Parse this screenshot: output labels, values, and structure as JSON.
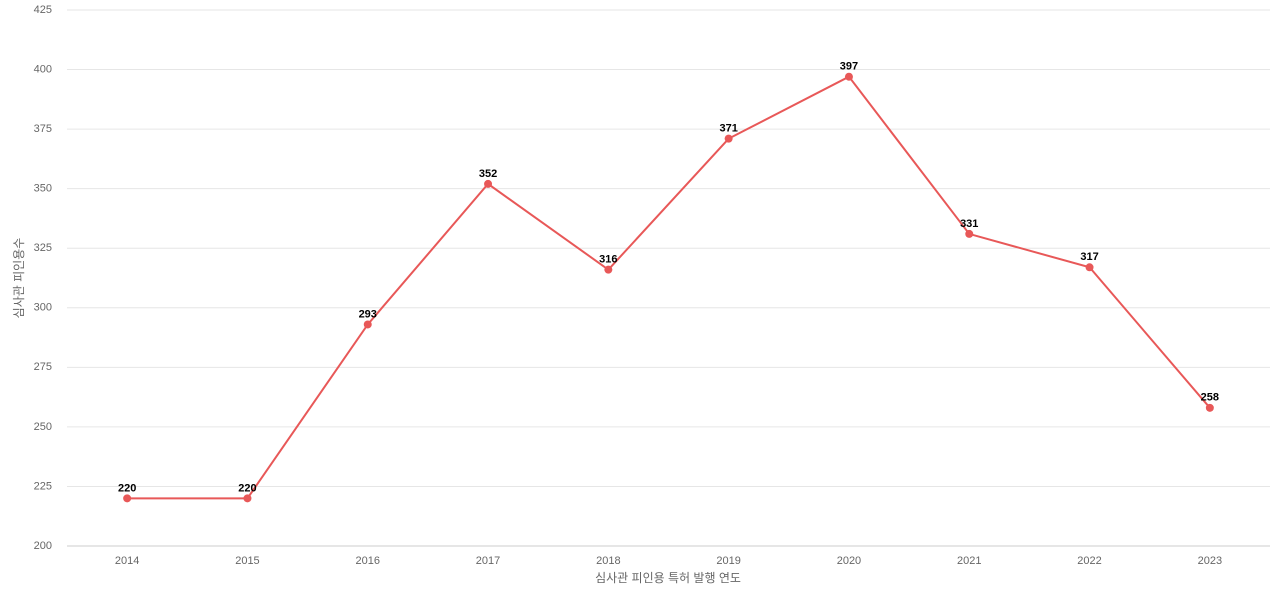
{
  "chart_data": {
    "type": "line",
    "x_label": "심사관 피인용 특허 발행 연도",
    "y_label": "심사관 피인용수",
    "categories": [
      "2014",
      "2015",
      "2016",
      "2017",
      "2018",
      "2019",
      "2020",
      "2021",
      "2022",
      "2023"
    ],
    "series": [
      {
        "color": "#e85858",
        "values": [
          220,
          220,
          293,
          352,
          316,
          371,
          397,
          331,
          317,
          258
        ]
      }
    ],
    "ylim": [
      200,
      425
    ],
    "yticks": [
      200,
      225,
      250,
      275,
      300,
      325,
      350,
      375,
      400,
      425
    ],
    "grid": true
  }
}
